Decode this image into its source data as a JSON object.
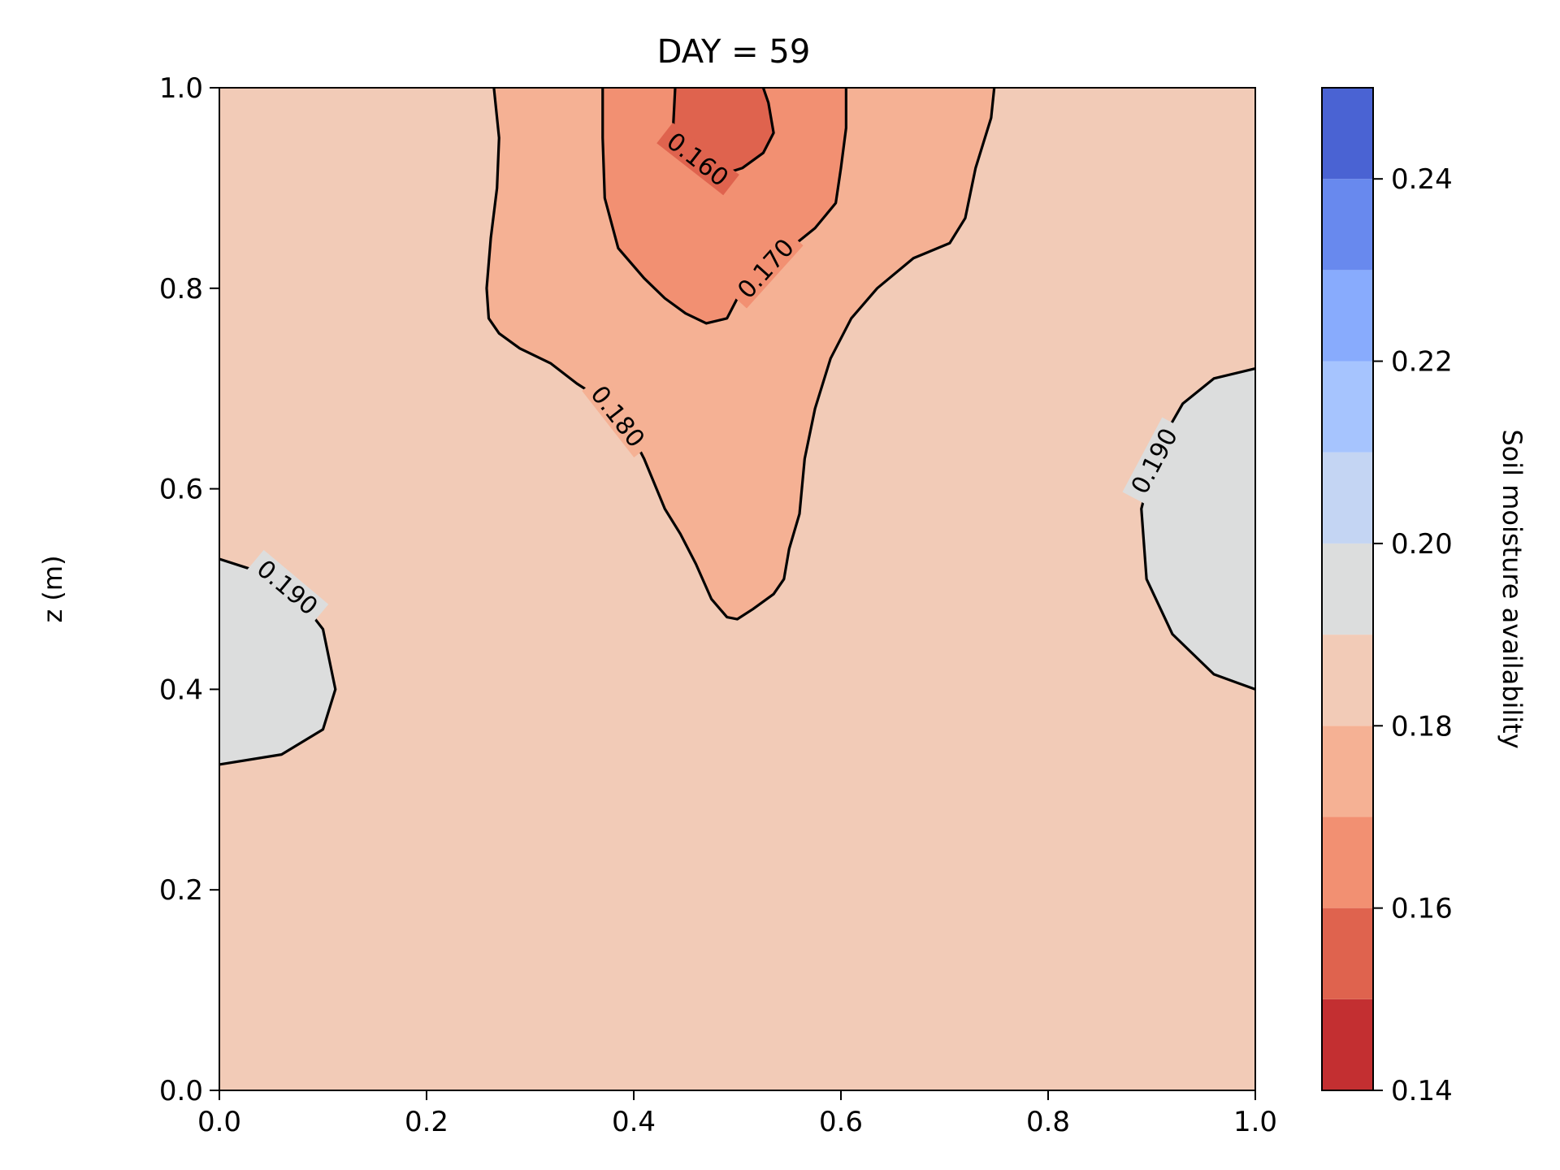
{
  "chart_data": {
    "type": "contourf",
    "title": "DAY = 59",
    "xlabel": "",
    "ylabel": "z (m)",
    "xlim": [
      0.0,
      1.0
    ],
    "ylim": [
      0.0,
      1.0
    ],
    "xticks": [
      "0.0",
      "0.2",
      "0.4",
      "0.6",
      "0.8",
      "1.0"
    ],
    "yticks": [
      "0.0",
      "0.2",
      "0.4",
      "0.6",
      "0.8",
      "1.0"
    ],
    "background_level": 0.185,
    "colorbar": {
      "label": "Soil moisture availability",
      "levels": [
        0.14,
        0.15,
        0.16,
        0.17,
        0.18,
        0.19,
        0.2,
        0.21,
        0.22,
        0.23,
        0.24,
        0.25
      ],
      "colors": [
        "#c32f31",
        "#df634e",
        "#f29072",
        "#f5b194",
        "#f2cbb7",
        "#dcdddd",
        "#c4d5f3",
        "#a6c4fe",
        "#88abfd",
        "#6889ee",
        "#4a63d3"
      ],
      "ticks": [
        "0.14",
        "0.16",
        "0.18",
        "0.20",
        "0.22",
        "0.24"
      ]
    },
    "contour_lines": [
      {
        "level": 0.18,
        "label": "0.180",
        "fill": "#f5b194",
        "points": [
          [
            0.265,
            1.0
          ],
          [
            0.27,
            0.95
          ],
          [
            0.268,
            0.9
          ],
          [
            0.262,
            0.85
          ],
          [
            0.258,
            0.8
          ],
          [
            0.26,
            0.77
          ],
          [
            0.27,
            0.755
          ],
          [
            0.29,
            0.74
          ],
          [
            0.32,
            0.725
          ],
          [
            0.345,
            0.705
          ],
          [
            0.375,
            0.685
          ],
          [
            0.395,
            0.66
          ],
          [
            0.41,
            0.63
          ],
          [
            0.43,
            0.58
          ],
          [
            0.445,
            0.555
          ],
          [
            0.46,
            0.525
          ],
          [
            0.475,
            0.49
          ],
          [
            0.49,
            0.472
          ],
          [
            0.5,
            0.47
          ],
          [
            0.515,
            0.48
          ],
          [
            0.535,
            0.495
          ],
          [
            0.545,
            0.51
          ],
          [
            0.55,
            0.54
          ],
          [
            0.56,
            0.575
          ],
          [
            0.565,
            0.63
          ],
          [
            0.575,
            0.68
          ],
          [
            0.59,
            0.73
          ],
          [
            0.61,
            0.77
          ],
          [
            0.635,
            0.8
          ],
          [
            0.67,
            0.83
          ],
          [
            0.705,
            0.845
          ],
          [
            0.72,
            0.87
          ],
          [
            0.73,
            0.92
          ],
          [
            0.745,
            0.97
          ],
          [
            0.748,
            1.0
          ]
        ]
      },
      {
        "level": 0.17,
        "label": "0.170",
        "fill": "#f29072",
        "points": [
          [
            0.37,
            1.0
          ],
          [
            0.37,
            0.95
          ],
          [
            0.372,
            0.89
          ],
          [
            0.385,
            0.84
          ],
          [
            0.41,
            0.81
          ],
          [
            0.43,
            0.79
          ],
          [
            0.45,
            0.775
          ],
          [
            0.47,
            0.765
          ],
          [
            0.49,
            0.77
          ],
          [
            0.5,
            0.79
          ],
          [
            0.515,
            0.81
          ],
          [
            0.545,
            0.835
          ],
          [
            0.575,
            0.86
          ],
          [
            0.595,
            0.885
          ],
          [
            0.6,
            0.92
          ],
          [
            0.605,
            0.96
          ],
          [
            0.605,
            1.0
          ]
        ]
      },
      {
        "level": 0.16,
        "label": "0.160",
        "fill": "#df634e",
        "points": [
          [
            0.44,
            1.0
          ],
          [
            0.438,
            0.96
          ],
          [
            0.45,
            0.935
          ],
          [
            0.47,
            0.925
          ],
          [
            0.49,
            0.915
          ],
          [
            0.505,
            0.92
          ],
          [
            0.525,
            0.935
          ],
          [
            0.535,
            0.955
          ],
          [
            0.53,
            0.985
          ],
          [
            0.525,
            1.0
          ]
        ]
      },
      {
        "level": 0.19,
        "label": "0.190",
        "fill": "#dcdddd",
        "points": [
          [
            0.0,
            0.53
          ],
          [
            0.03,
            0.52
          ],
          [
            0.07,
            0.5
          ],
          [
            0.1,
            0.46
          ],
          [
            0.112,
            0.4
          ],
          [
            0.1,
            0.36
          ],
          [
            0.06,
            0.335
          ],
          [
            0.0,
            0.325
          ]
        ]
      },
      {
        "level": 0.19,
        "label": "0.190",
        "fill": "#dcdddd",
        "points": [
          [
            1.0,
            0.72
          ],
          [
            0.96,
            0.71
          ],
          [
            0.93,
            0.685
          ],
          [
            0.905,
            0.64
          ],
          [
            0.89,
            0.58
          ],
          [
            0.895,
            0.51
          ],
          [
            0.92,
            0.455
          ],
          [
            0.96,
            0.415
          ],
          [
            1.0,
            0.4
          ]
        ]
      }
    ]
  }
}
